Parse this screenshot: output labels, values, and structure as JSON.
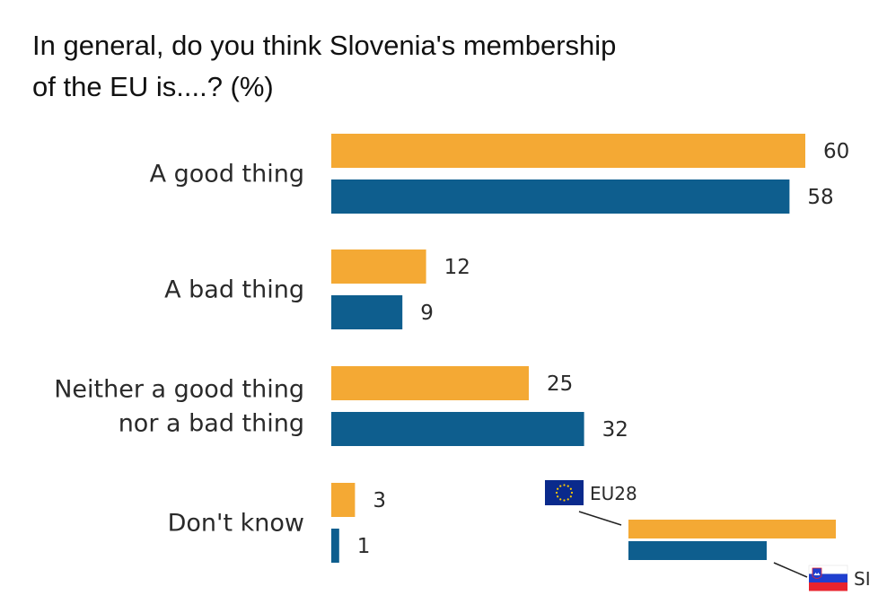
{
  "chart_data": {
    "type": "bar",
    "orientation": "horizontal",
    "title": "In general, do you think Slovenia's membership of the EU is....? (%)",
    "title_lines": [
      "In general, do you think Slovenia's membership",
      "of the EU is....? (%)"
    ],
    "xlabel": "",
    "ylabel": "",
    "xlim": [
      0,
      60
    ],
    "grid": false,
    "categories": [
      [
        "A good thing"
      ],
      [
        "A bad thing"
      ],
      [
        "Neither a good thing",
        "nor a bad thing"
      ],
      [
        "Don't know"
      ]
    ],
    "series": [
      {
        "name": "EU28",
        "color": "#F4A934",
        "values": [
          60,
          12,
          25,
          3
        ]
      },
      {
        "name": "SI",
        "color": "#0E5E8E",
        "values": [
          58,
          9,
          32,
          1
        ]
      }
    ],
    "legend": {
      "placement": "bottom-right",
      "entries": [
        {
          "label": "EU28",
          "icon": "eu-flag-icon"
        },
        {
          "label": "SI",
          "icon": "slovenia-flag-icon"
        }
      ]
    }
  }
}
